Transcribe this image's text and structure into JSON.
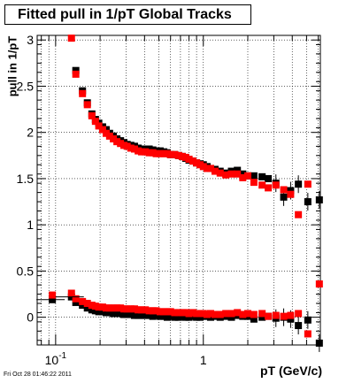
{
  "chart_data": {
    "type": "scatter",
    "title": "Fitted pull in 1/pT  Global Tracks",
    "xlabel": "pT (GeV/c)",
    "ylabel": "pull in 1/pT",
    "x_scale": "log",
    "xlim": [
      0.075,
      6.2
    ],
    "ylim": [
      -0.3,
      3.05
    ],
    "x_tick_labels": [
      {
        "value": 0.1,
        "base": "10",
        "exp": "-1"
      },
      {
        "value": 1,
        "base": "1",
        "exp": ""
      }
    ],
    "y_ticks": [
      {
        "value": 0,
        "label": "0"
      },
      {
        "value": 0.5,
        "label": "0.5"
      },
      {
        "value": 1,
        "label": "1"
      },
      {
        "value": 1.5,
        "label": "1.5"
      },
      {
        "value": 2,
        "label": "2"
      },
      {
        "value": 2.5,
        "label": "2.5"
      },
      {
        "value": 3,
        "label": "3"
      }
    ],
    "grid": true,
    "series": [
      {
        "marker": "square",
        "color": "#000000",
        "points": [
          [
            0.137,
            2.67
          ],
          [
            0.152,
            2.45
          ],
          [
            0.164,
            2.32
          ],
          [
            0.176,
            2.2
          ],
          [
            0.186,
            2.14
          ],
          [
            0.196,
            2.1
          ],
          [
            0.208,
            2.06
          ],
          [
            0.22,
            2.03
          ],
          [
            0.232,
            1.99
          ],
          [
            0.246,
            1.96
          ],
          [
            0.26,
            1.93
          ],
          [
            0.275,
            1.91
          ],
          [
            0.29,
            1.89
          ],
          [
            0.305,
            1.87
          ],
          [
            0.323,
            1.86
          ],
          [
            0.342,
            1.85
          ],
          [
            0.362,
            1.83
          ],
          [
            0.382,
            1.82
          ],
          [
            0.405,
            1.82
          ],
          [
            0.43,
            1.82
          ],
          [
            0.455,
            1.81
          ],
          [
            0.48,
            1.8
          ],
          [
            0.51,
            1.8
          ],
          [
            0.54,
            1.79
          ],
          [
            0.57,
            1.78
          ],
          [
            0.6,
            1.76
          ],
          [
            0.64,
            1.76
          ],
          [
            0.68,
            1.75
          ],
          [
            0.72,
            1.74
          ],
          [
            0.76,
            1.72
          ],
          [
            0.8,
            1.7
          ],
          [
            0.85,
            1.69
          ],
          [
            0.9,
            1.67
          ],
          [
            0.95,
            1.66
          ],
          [
            1.0,
            1.65
          ],
          [
            1.06,
            1.63
          ],
          [
            1.12,
            1.61
          ],
          [
            1.2,
            1.6
          ],
          [
            1.3,
            1.58
          ],
          [
            1.42,
            1.56
          ],
          [
            1.55,
            1.58
          ],
          [
            1.7,
            1.59
          ],
          [
            1.85,
            1.55
          ],
          [
            2.0,
            1.53
          ],
          [
            2.2,
            1.53
          ],
          [
            2.5,
            1.52
          ],
          [
            2.75,
            1.5
          ],
          [
            3.1,
            1.45
          ],
          [
            3.5,
            1.3
          ],
          [
            3.9,
            1.37
          ],
          [
            4.4,
            1.44
          ],
          [
            5.1,
            1.25
          ],
          [
            6.1,
            1.27
          ]
        ],
        "low_points": [
          [
            0.095,
            0.19
          ],
          [
            0.128,
            0.22
          ],
          [
            0.137,
            0.16
          ],
          [
            0.152,
            0.13
          ],
          [
            0.164,
            0.1
          ],
          [
            0.176,
            0.08
          ],
          [
            0.186,
            0.07
          ],
          [
            0.196,
            0.06
          ],
          [
            0.208,
            0.06
          ],
          [
            0.22,
            0.05
          ],
          [
            0.232,
            0.05
          ],
          [
            0.246,
            0.04
          ],
          [
            0.26,
            0.04
          ],
          [
            0.275,
            0.04
          ],
          [
            0.29,
            0.03
          ],
          [
            0.305,
            0.03
          ],
          [
            0.323,
            0.03
          ],
          [
            0.342,
            0.02
          ],
          [
            0.362,
            0.02
          ],
          [
            0.382,
            0.02
          ],
          [
            0.405,
            0.02
          ],
          [
            0.43,
            0.02
          ],
          [
            0.455,
            0.01
          ],
          [
            0.48,
            0.02
          ],
          [
            0.51,
            0.01
          ],
          [
            0.54,
            0.01
          ],
          [
            0.57,
            0.0
          ],
          [
            0.6,
            0.01
          ],
          [
            0.64,
            0.0
          ],
          [
            0.68,
            0.0
          ],
          [
            0.72,
            0.01
          ],
          [
            0.76,
            0.0
          ],
          [
            0.8,
            0.0
          ],
          [
            0.85,
            0.01
          ],
          [
            0.9,
            0.0
          ],
          [
            0.95,
            0.0
          ],
          [
            1.0,
            0.01
          ],
          [
            1.06,
            0.01
          ],
          [
            1.12,
            0.0
          ],
          [
            1.2,
            0.01
          ],
          [
            1.3,
            0.0
          ],
          [
            1.42,
            0.01
          ],
          [
            1.55,
            0.0
          ],
          [
            1.7,
            0.02
          ],
          [
            1.85,
            0.01
          ],
          [
            2.0,
            0.01
          ],
          [
            2.2,
            -0.02
          ],
          [
            2.5,
            0.0
          ],
          [
            2.75,
            0.01
          ],
          [
            3.1,
            -0.01
          ],
          [
            3.5,
            0.0
          ],
          [
            3.9,
            -0.02
          ],
          [
            4.4,
            -0.09
          ],
          [
            5.1,
            -0.03
          ],
          [
            6.1,
            -0.28
          ]
        ]
      },
      {
        "marker": "square",
        "color": "#ff0000",
        "points": [
          [
            0.128,
            3.02
          ],
          [
            0.137,
            2.63
          ],
          [
            0.152,
            2.42
          ],
          [
            0.164,
            2.3
          ],
          [
            0.176,
            2.18
          ],
          [
            0.186,
            2.12
          ],
          [
            0.196,
            2.07
          ],
          [
            0.208,
            2.03
          ],
          [
            0.22,
            1.99
          ],
          [
            0.232,
            1.96
          ],
          [
            0.246,
            1.93
          ],
          [
            0.26,
            1.9
          ],
          [
            0.275,
            1.88
          ],
          [
            0.29,
            1.86
          ],
          [
            0.305,
            1.85
          ],
          [
            0.323,
            1.83
          ],
          [
            0.342,
            1.82
          ],
          [
            0.362,
            1.8
          ],
          [
            0.382,
            1.79
          ],
          [
            0.405,
            1.79
          ],
          [
            0.43,
            1.78
          ],
          [
            0.455,
            1.78
          ],
          [
            0.48,
            1.77
          ],
          [
            0.51,
            1.77
          ],
          [
            0.54,
            1.77
          ],
          [
            0.57,
            1.77
          ],
          [
            0.6,
            1.76
          ],
          [
            0.64,
            1.76
          ],
          [
            0.68,
            1.75
          ],
          [
            0.72,
            1.74
          ],
          [
            0.76,
            1.73
          ],
          [
            0.8,
            1.71
          ],
          [
            0.85,
            1.69
          ],
          [
            0.9,
            1.67
          ],
          [
            0.95,
            1.65
          ],
          [
            1.0,
            1.63
          ],
          [
            1.06,
            1.61
          ],
          [
            1.12,
            1.61
          ],
          [
            1.2,
            1.58
          ],
          [
            1.3,
            1.56
          ],
          [
            1.42,
            1.54
          ],
          [
            1.55,
            1.55
          ],
          [
            1.7,
            1.55
          ],
          [
            1.85,
            1.51
          ],
          [
            2.0,
            1.53
          ],
          [
            2.2,
            1.46
          ],
          [
            2.5,
            1.43
          ],
          [
            2.75,
            1.4
          ],
          [
            3.1,
            1.43
          ],
          [
            3.5,
            1.38
          ],
          [
            3.9,
            1.33
          ],
          [
            4.4,
            1.11
          ],
          [
            5.1,
            1.44
          ]
        ],
        "low_points": [
          [
            0.095,
            0.24
          ],
          [
            0.128,
            0.26
          ],
          [
            0.137,
            0.2
          ],
          [
            0.152,
            0.17
          ],
          [
            0.164,
            0.15
          ],
          [
            0.176,
            0.13
          ],
          [
            0.186,
            0.12
          ],
          [
            0.196,
            0.11
          ],
          [
            0.208,
            0.11
          ],
          [
            0.22,
            0.1
          ],
          [
            0.232,
            0.1
          ],
          [
            0.246,
            0.1
          ],
          [
            0.26,
            0.1
          ],
          [
            0.275,
            0.1
          ],
          [
            0.29,
            0.09
          ],
          [
            0.305,
            0.09
          ],
          [
            0.323,
            0.09
          ],
          [
            0.342,
            0.09
          ],
          [
            0.362,
            0.08
          ],
          [
            0.382,
            0.08
          ],
          [
            0.405,
            0.08
          ],
          [
            0.43,
            0.07
          ],
          [
            0.455,
            0.07
          ],
          [
            0.48,
            0.07
          ],
          [
            0.51,
            0.06
          ],
          [
            0.54,
            0.06
          ],
          [
            0.57,
            0.06
          ],
          [
            0.6,
            0.06
          ],
          [
            0.64,
            0.05
          ],
          [
            0.68,
            0.05
          ],
          [
            0.72,
            0.05
          ],
          [
            0.76,
            0.05
          ],
          [
            0.8,
            0.04
          ],
          [
            0.85,
            0.05
          ],
          [
            0.9,
            0.04
          ],
          [
            0.95,
            0.04
          ],
          [
            1.0,
            0.04
          ],
          [
            1.06,
            0.03
          ],
          [
            1.12,
            0.04
          ],
          [
            1.2,
            0.03
          ],
          [
            1.3,
            0.03
          ],
          [
            1.42,
            0.04
          ],
          [
            1.55,
            0.04
          ],
          [
            1.7,
            0.05
          ],
          [
            1.85,
            0.03
          ],
          [
            2.0,
            0.04
          ],
          [
            2.2,
            0.03
          ],
          [
            2.5,
            0.04
          ],
          [
            2.75,
            0.01
          ],
          [
            3.1,
            0.02
          ],
          [
            3.5,
            0.01
          ],
          [
            3.9,
            0.02
          ],
          [
            4.4,
            0.04
          ],
          [
            5.1,
            -0.18
          ],
          [
            6.1,
            0.36
          ]
        ]
      }
    ]
  },
  "footer": {
    "datestamp": "Fri Oct 28 01:46:22 2011"
  }
}
